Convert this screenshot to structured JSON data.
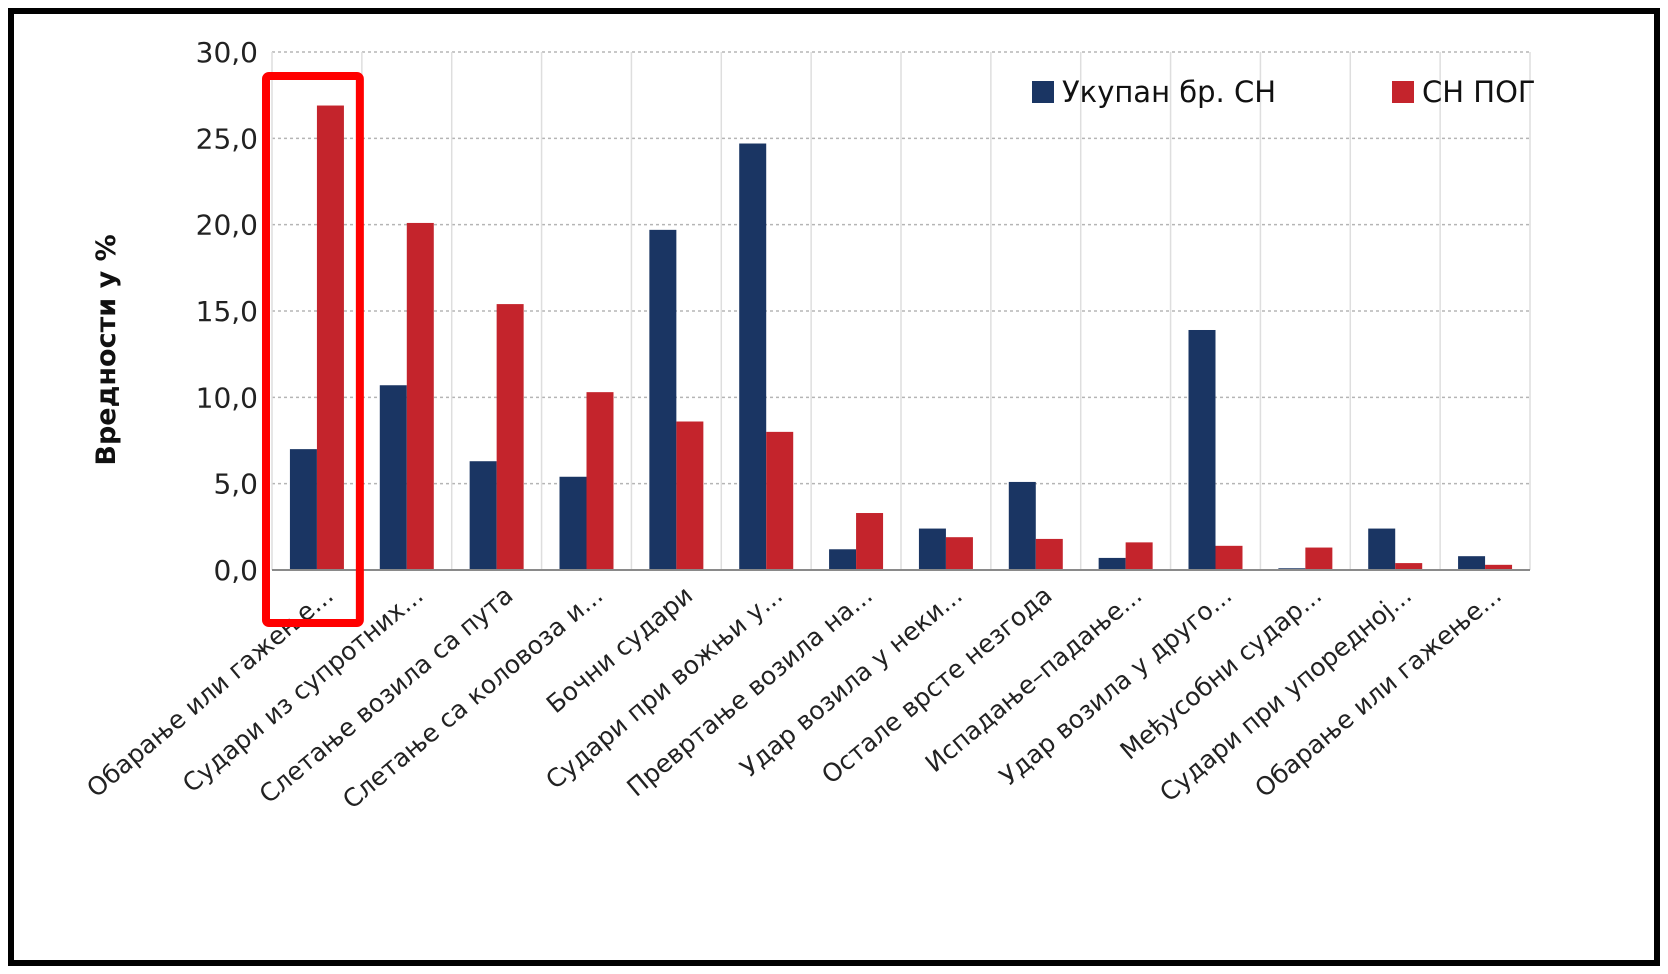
{
  "chart_data": {
    "type": "bar",
    "ylabel": "Вредности у %",
    "ylim": [
      0,
      30
    ],
    "yticks": [
      "0,0",
      "5,0",
      "10,0",
      "15,0",
      "20,0",
      "25,0",
      "30,0"
    ],
    "grid": true,
    "legend_position": "top-right",
    "categories": [
      "Обарање или гажење...",
      "Судари из супротних...",
      "Слетање возила са пута",
      "Слетање са коловоза и...",
      "Бочни судари",
      "Судари при вожњи у...",
      "Превртање возила на...",
      "Удар возила у неки...",
      "Остале врсте незгода",
      "Испадање–падање...",
      "Удар возила у друго...",
      "Међусобни судар...",
      "Судари при упоредној...",
      "Обарање или гажење..."
    ],
    "series": [
      {
        "name": "Укупан бр. СН",
        "color": "#1a3563",
        "values": [
          7.0,
          10.7,
          6.3,
          5.4,
          19.7,
          24.7,
          1.2,
          2.4,
          5.1,
          0.7,
          13.9,
          0.1,
          2.4,
          0.8
        ]
      },
      {
        "name": "СН ПОГ",
        "color": "#c4242c",
        "values": [
          26.9,
          20.1,
          15.4,
          10.3,
          8.6,
          8.0,
          3.3,
          1.9,
          1.8,
          1.6,
          1.4,
          1.3,
          0.4,
          0.3
        ]
      }
    ],
    "highlight": {
      "category_index": 0,
      "color": "#ff0000"
    }
  }
}
